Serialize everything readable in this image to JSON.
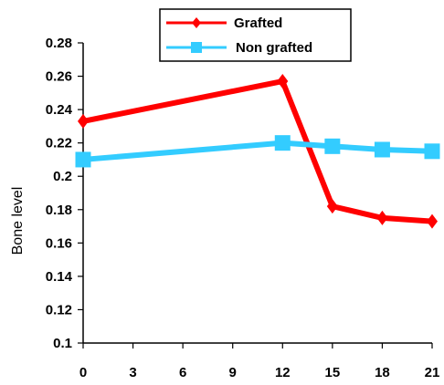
{
  "chart_data": {
    "type": "line",
    "title": "",
    "xlabel": "",
    "ylabel": "Bone level",
    "x": [
      0,
      12,
      15,
      18,
      21
    ],
    "xticks": [
      "0",
      "3",
      "6",
      "9",
      "12",
      "15",
      "18",
      "21"
    ],
    "yticks": [
      "0.1",
      "0.12",
      "0.14",
      "0.16",
      "0.18",
      "0.2",
      "0.22",
      "0.24",
      "0.26",
      "0.28"
    ],
    "xlim": [
      0,
      21
    ],
    "ylim": [
      0.1,
      0.28
    ],
    "grid": false,
    "legend_position": "top",
    "series": [
      {
        "name": "Grafted",
        "values": [
          0.233,
          0.257,
          0.182,
          0.175,
          0.173
        ],
        "color": "#ff0000",
        "marker": "diamond"
      },
      {
        "name": "Non grafted",
        "values": [
          0.21,
          0.22,
          0.218,
          0.216,
          0.215
        ],
        "color": "#33ccff",
        "marker": "square"
      }
    ]
  }
}
